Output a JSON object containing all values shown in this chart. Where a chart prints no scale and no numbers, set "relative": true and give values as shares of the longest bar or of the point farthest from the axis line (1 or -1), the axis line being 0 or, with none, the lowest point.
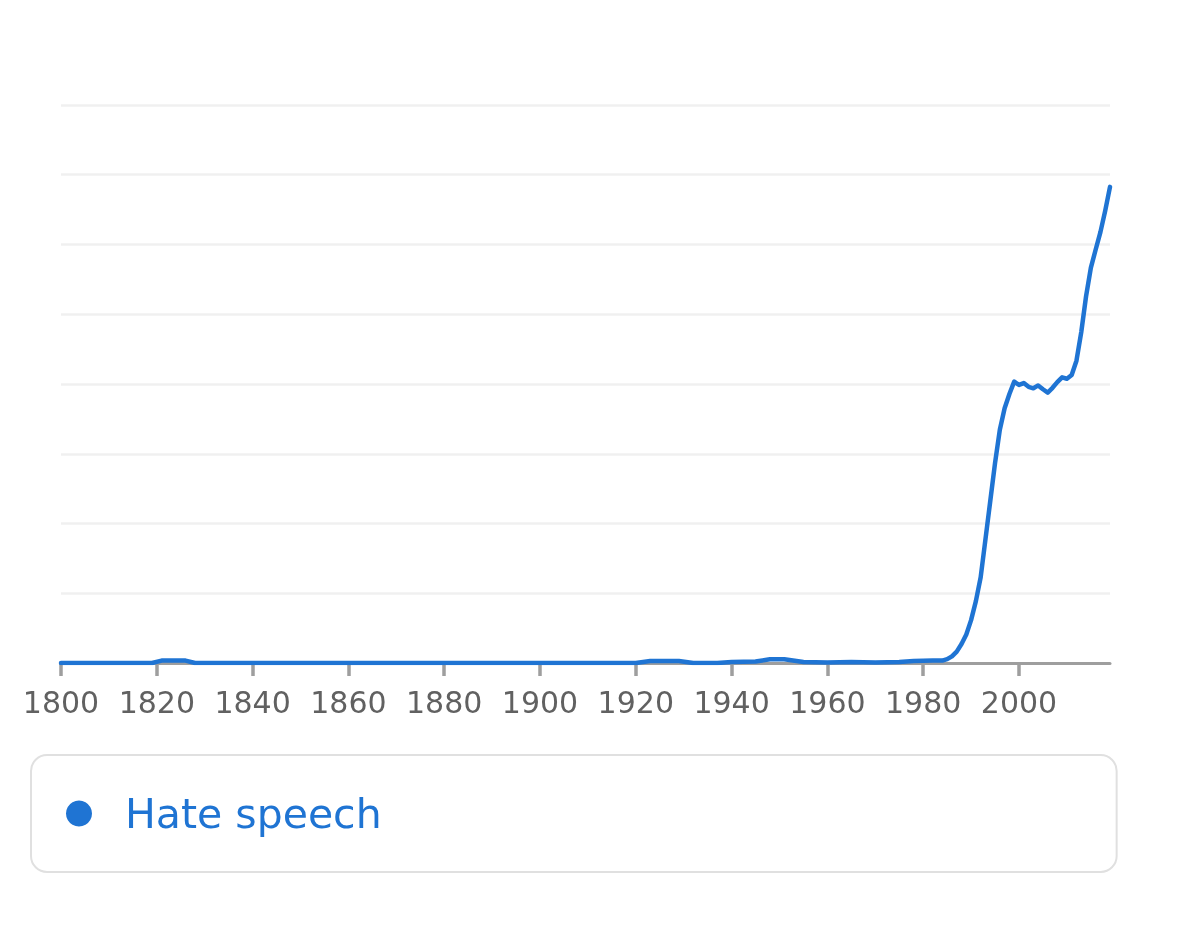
{
  "chart_data": {
    "type": "line",
    "relative": true,
    "x": [
      1800,
      1819,
      1821,
      1826,
      1828,
      1885,
      1920,
      1923,
      1929,
      1932,
      1937,
      1940,
      1945,
      1948,
      1951,
      1955,
      1960,
      1965,
      1970,
      1975,
      1978,
      1982,
      1984,
      1985,
      1986,
      1987,
      1988,
      1989,
      1990,
      1991,
      1992,
      1993,
      1994,
      1995,
      1996,
      1997,
      1998,
      1999,
      2000,
      2001,
      2002,
      2003,
      2004,
      2005,
      2006,
      2007,
      2008,
      2009,
      2010,
      2011,
      2012,
      2013,
      2014,
      2015,
      2016,
      2017,
      2018,
      2019
    ],
    "series": [
      {
        "name": "Hate speech",
        "color": "#1f74d3",
        "values": [
          0,
          0,
          0.005,
          0.005,
          0,
          0,
          0,
          0.004,
          0.004,
          0,
          0,
          0.002,
          0.003,
          0.008,
          0.008,
          0.002,
          0.001,
          0.002,
          0.001,
          0.002,
          0.004,
          0.005,
          0.005,
          0.008,
          0.014,
          0.024,
          0.04,
          0.06,
          0.09,
          0.13,
          0.18,
          0.26,
          0.34,
          0.42,
          0.49,
          0.535,
          0.565,
          0.591,
          0.584,
          0.588,
          0.58,
          0.577,
          0.583,
          0.575,
          0.568,
          0.578,
          0.59,
          0.6,
          0.597,
          0.605,
          0.635,
          0.695,
          0.77,
          0.83,
          0.868,
          0.905,
          0.95,
          1
        ]
      }
    ],
    "xlim": [
      1800,
      2019
    ],
    "xticks": [
      1800,
      1820,
      1840,
      1860,
      1880,
      1900,
      1920,
      1940,
      1960,
      1980,
      2000
    ],
    "grid": "y",
    "legend": "bottom"
  }
}
